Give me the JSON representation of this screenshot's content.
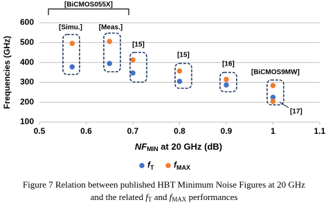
{
  "chart_data": {
    "type": "scatter",
    "y_label": "Frequencies (GHz)",
    "x_label": {
      "main": "NF",
      "sub": "MIN",
      "rest": " at 20 GHz (dB)"
    },
    "xlim": [
      0.5,
      1.1
    ],
    "xticks": [
      0.5,
      0.6,
      0.7,
      0.8,
      0.9,
      1,
      1.1
    ],
    "ylim": [
      100,
      600
    ],
    "yticks": [
      100,
      200,
      300,
      400,
      500,
      600
    ],
    "grid": true,
    "series": [
      {
        "name": "f",
        "subscript": "T",
        "color": "#4472c4",
        "x": [
          0.57,
          0.65,
          0.7,
          0.8,
          0.9,
          1.0
        ],
        "values": [
          378,
          395,
          347,
          305,
          287,
          225
        ]
      },
      {
        "name": "f",
        "subscript": "MAX",
        "color": "#ed7d31",
        "x": [
          0.57,
          0.65,
          0.7,
          0.8,
          0.9,
          1.0,
          1.0
        ],
        "values": [
          496,
          506,
          413,
          357,
          315,
          284,
          204
        ]
      }
    ],
    "annotations": [
      "[BiCMOS055X]",
      "[Simu.]",
      "[Meas.]",
      "[15]",
      "[15]",
      "[16]",
      "[BiCMOS9MW]",
      "[17]"
    ]
  },
  "caption": {
    "line1": "Figure 7 Relation between published HBT Minimum Noise Figures at 20 GHz",
    "line2_a": "and the related ",
    "f1": "f",
    "f1_sub": "T",
    "and": " and ",
    "f2": "f",
    "f2_sub": "MAX",
    "line2_b": " performances"
  }
}
